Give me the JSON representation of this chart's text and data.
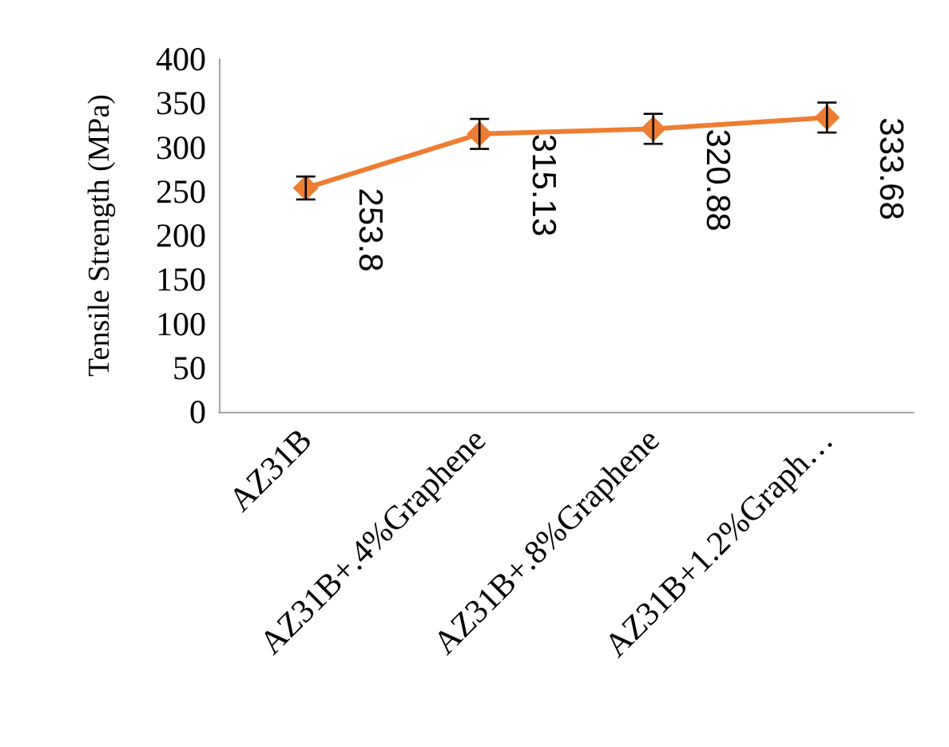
{
  "chart_data": {
    "type": "line",
    "ylabel": "Tensile Strength (MPa)",
    "categories": [
      "AZ31B",
      "AZ31B+.4%Graphene",
      "AZ31B+.8%Graphene",
      "AZ31B+1.2%Graph…"
    ],
    "series": [
      {
        "color": "#ed7d31",
        "values": [
          253.8,
          315.13,
          320.88,
          333.68
        ],
        "errors": [
          13,
          17,
          17,
          17
        ]
      }
    ],
    "ylim": [
      0,
      400
    ],
    "yticks": [
      0,
      50,
      100,
      150,
      200,
      250,
      300,
      350,
      400
    ],
    "data_labels": true,
    "marker": "diamond",
    "line_style": "solid"
  }
}
